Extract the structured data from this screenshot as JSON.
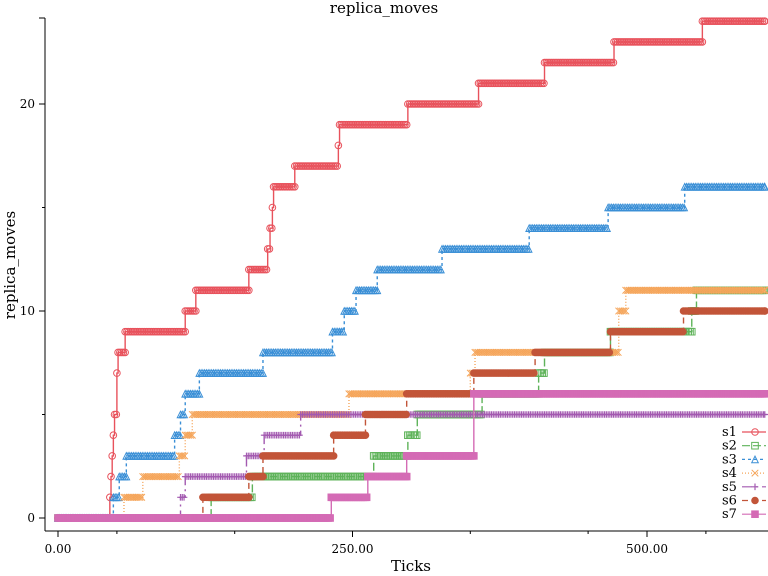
{
  "chart_data": {
    "type": "line",
    "title": "replica_moves",
    "xlabel": "Ticks",
    "ylabel": "replica_moves",
    "xlim": [
      0,
      600
    ],
    "ylim": [
      -0.5,
      24
    ],
    "x_ticks": [
      0,
      250,
      500
    ],
    "x_tick_labels": [
      "0.00",
      "250.00",
      "500.00"
    ],
    "y_ticks": [
      0,
      10,
      20
    ],
    "y_tick_labels": [
      "0",
      "10",
      "20"
    ],
    "grid": false,
    "legend_position": "bottom-right",
    "series": [
      {
        "name": "s1",
        "color": "#e8525c",
        "dash": "",
        "marker": "circle",
        "steps": [
          [
            0,
            0
          ],
          [
            44,
            1
          ],
          [
            45,
            2
          ],
          [
            46,
            3
          ],
          [
            47,
            4
          ],
          [
            48,
            5
          ],
          [
            50,
            7
          ],
          [
            51,
            8
          ],
          [
            57,
            9
          ],
          [
            108,
            10
          ],
          [
            117,
            11
          ],
          [
            162,
            12
          ],
          [
            178,
            13
          ],
          [
            180,
            14
          ],
          [
            182,
            15
          ],
          [
            183,
            16
          ],
          [
            201,
            17
          ],
          [
            238,
            18
          ],
          [
            239,
            19
          ],
          [
            297,
            20
          ],
          [
            357,
            21
          ],
          [
            413,
            22
          ],
          [
            472,
            23
          ],
          [
            547,
            24
          ],
          [
            600,
            24
          ]
        ]
      },
      {
        "name": "s2",
        "color": "#5fb35a",
        "dash": "8,3",
        "marker": "square",
        "steps": [
          [
            0,
            0
          ],
          [
            130,
            1
          ],
          [
            165,
            2
          ],
          [
            268,
            3
          ],
          [
            297,
            4
          ],
          [
            305,
            5
          ],
          [
            360,
            6
          ],
          [
            408,
            7
          ],
          [
            413,
            8
          ],
          [
            469,
            9
          ],
          [
            538,
            10
          ],
          [
            542,
            11
          ],
          [
            600,
            11
          ]
        ]
      },
      {
        "name": "s3",
        "color": "#3a8fd6",
        "dash": "3,3",
        "marker": "triangle",
        "steps": [
          [
            0,
            0
          ],
          [
            47,
            1
          ],
          [
            52,
            2
          ],
          [
            58,
            3
          ],
          [
            99,
            4
          ],
          [
            104,
            5
          ],
          [
            108,
            6
          ],
          [
            120,
            7
          ],
          [
            174,
            8
          ],
          [
            233,
            9
          ],
          [
            243,
            10
          ],
          [
            253,
            11
          ],
          [
            271,
            12
          ],
          [
            326,
            13
          ],
          [
            400,
            14
          ],
          [
            467,
            15
          ],
          [
            532,
            16
          ],
          [
            600,
            16
          ]
        ]
      },
      {
        "name": "s4",
        "color": "#f5a55a",
        "dash": "1,2",
        "marker": "x",
        "steps": [
          [
            0,
            0
          ],
          [
            56,
            1
          ],
          [
            72,
            2
          ],
          [
            103,
            3
          ],
          [
            108,
            4
          ],
          [
            114,
            5
          ],
          [
            247,
            6
          ],
          [
            350,
            7
          ],
          [
            354,
            8
          ],
          [
            476,
            10
          ],
          [
            482,
            11
          ],
          [
            600,
            11
          ]
        ]
      },
      {
        "name": "s5",
        "color": "#a35ab0",
        "dash": "10,4,2,4",
        "marker": "plus",
        "steps": [
          [
            0,
            0
          ],
          [
            104,
            1
          ],
          [
            108,
            2
          ],
          [
            160,
            3
          ],
          [
            175,
            4
          ],
          [
            206,
            5
          ],
          [
            600,
            5
          ]
        ]
      },
      {
        "name": "s6",
        "color": "#c25539",
        "dash": "6,4",
        "marker": "filled-circle",
        "steps": [
          [
            0,
            0
          ],
          [
            123,
            1
          ],
          [
            162,
            2
          ],
          [
            174,
            3
          ],
          [
            234,
            4
          ],
          [
            261,
            5
          ],
          [
            296,
            6
          ],
          [
            353,
            7
          ],
          [
            405,
            8
          ],
          [
            469,
            9
          ],
          [
            531,
            10
          ],
          [
            600,
            10
          ]
        ]
      },
      {
        "name": "s7",
        "color": "#d46bb5",
        "dash": "",
        "marker": "filled-square",
        "steps": [
          [
            0,
            0
          ],
          [
            232,
            1
          ],
          [
            263,
            2
          ],
          [
            296,
            3
          ],
          [
            353,
            6
          ],
          [
            600,
            6
          ]
        ]
      }
    ]
  }
}
